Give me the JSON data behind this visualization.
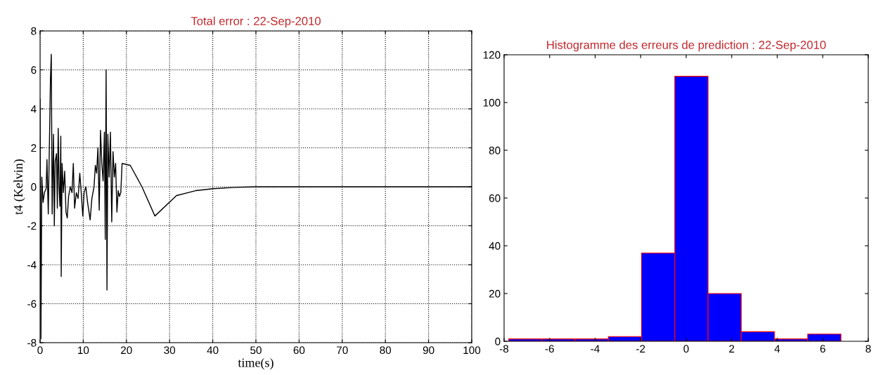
{
  "chart_data": [
    {
      "type": "line",
      "title": "Total error : 22-Sep-2010",
      "xlabel": "time(s)",
      "ylabel": "t4 (Kelvin)",
      "xlim": [
        0,
        100
      ],
      "ylim": [
        -8,
        8
      ],
      "xticks": [
        0,
        10,
        20,
        30,
        40,
        50,
        60,
        70,
        80,
        90,
        100
      ],
      "yticks": [
        -8,
        -6,
        -4,
        -2,
        0,
        2,
        4,
        6,
        8
      ],
      "grid": true,
      "line_style": "solid",
      "marker": "none",
      "series": [
        {
          "color": "#000000",
          "x": [
            0,
            0.2,
            0.4,
            0.7,
            1.0,
            1.4,
            1.6,
            1.9,
            2.2,
            2.4,
            2.6,
            2.8,
            3.1,
            3.3,
            3.5,
            3.8,
            4.0,
            4.2,
            4.4,
            4.6,
            4.8,
            4.9,
            5.1,
            5.4,
            5.7,
            6.0,
            6.3,
            6.6,
            7.0,
            7.4,
            7.7,
            8.0,
            8.4,
            8.8,
            9.2,
            9.5,
            9.9,
            10.2,
            10.6,
            11.0,
            11.6,
            12.0,
            12.5,
            12.8,
            13.1,
            13.4,
            13.7,
            14.0,
            14.3,
            14.6,
            14.9,
            15.1,
            15.3,
            15.5,
            15.7,
            16.0,
            16.3,
            16.6,
            16.9,
            17.2,
            17.5,
            17.8,
            18.1,
            18.4,
            18.7,
            19.0,
            20.9,
            23.6,
            26.6,
            31.6,
            36,
            40,
            45,
            50,
            100
          ],
          "values": [
            4.5,
            -7.8,
            0.5,
            -0.8,
            -0.3,
            -0.1,
            1.4,
            -1.4,
            2.7,
            5.5,
            6.8,
            -1.4,
            2.7,
            -2.0,
            1.3,
            1.7,
            -1.1,
            3.0,
            0,
            -1.0,
            2.6,
            -4.6,
            1.2,
            -0.3,
            0.8,
            -1.3,
            -1.6,
            -0.5,
            0,
            -0.3,
            1.2,
            -1.1,
            -0.3,
            -0.6,
            0.7,
            -0.2,
            -1.5,
            -0.3,
            0,
            -0.8,
            -1.7,
            -0.6,
            0,
            1.1,
            0.7,
            2.0,
            -1.2,
            2.9,
            1.2,
            0.3,
            2.8,
            -2.7,
            6.0,
            -5.3,
            2.7,
            0.5,
            2.8,
            -1.8,
            1.8,
            0.5,
            1.2,
            -1.3,
            -0.2,
            -0.5,
            -0.3,
            1.2,
            1.1,
            0,
            -1.5,
            -0.45,
            -0.2,
            -0.1,
            -0.03,
            0,
            0
          ]
        }
      ]
    },
    {
      "type": "histogram",
      "title": "Histogramme des erreurs de prediction : 22-Sep-2010",
      "xlim": [
        -8,
        8
      ],
      "ylim": [
        0,
        120
      ],
      "xticks": [
        -8,
        -6,
        -4,
        -2,
        0,
        2,
        4,
        6,
        8
      ],
      "yticks": [
        0,
        20,
        40,
        60,
        80,
        100,
        120
      ],
      "grid": false,
      "color": "#0000ff",
      "bins": [
        -7.8,
        -6.34,
        -4.88,
        -3.42,
        -1.96,
        -0.5,
        0.96,
        2.42,
        3.88,
        5.34,
        6.8
      ],
      "values": [
        1,
        1,
        1,
        2,
        37,
        111,
        20,
        4,
        1,
        3
      ]
    }
  ]
}
